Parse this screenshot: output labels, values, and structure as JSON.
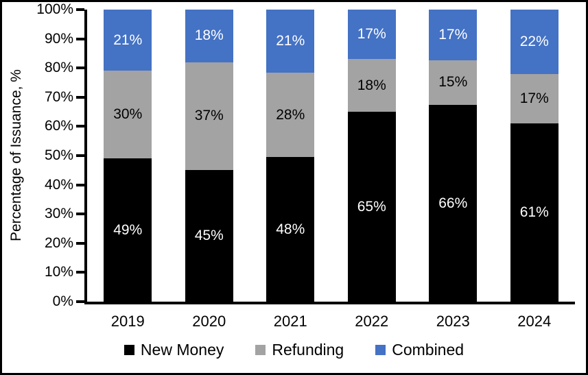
{
  "chart_data": {
    "type": "bar",
    "stacked": true,
    "stacked_to_100_percent": true,
    "title": "",
    "xlabel": "",
    "ylabel": "Percentage of Issuance, %",
    "ylim": [
      0,
      100
    ],
    "grid": false,
    "legend_position": "bottom",
    "value_suffix": "%",
    "categories": [
      "2019",
      "2020",
      "2021",
      "2022",
      "2023",
      "2024"
    ],
    "series": [
      {
        "name": "New Money",
        "color": "#000000",
        "label_color": "#FFFFFF",
        "values": [
          49,
          45,
          48,
          65,
          66,
          61
        ]
      },
      {
        "name": "Refunding",
        "color": "#A3A3A3",
        "label_color": "#000000",
        "values": [
          30,
          37,
          28,
          18,
          15,
          17
        ]
      },
      {
        "name": "Combined",
        "color": "#4472C4",
        "label_color": "#FFFFFF",
        "values": [
          21,
          18,
          21,
          17,
          17,
          22
        ]
      }
    ],
    "y_ticks": [
      "0%",
      "10%",
      "20%",
      "30%",
      "40%",
      "50%",
      "60%",
      "70%",
      "80%",
      "90%",
      "100%"
    ],
    "axis_color": "#000000",
    "border_color": "#000000"
  }
}
